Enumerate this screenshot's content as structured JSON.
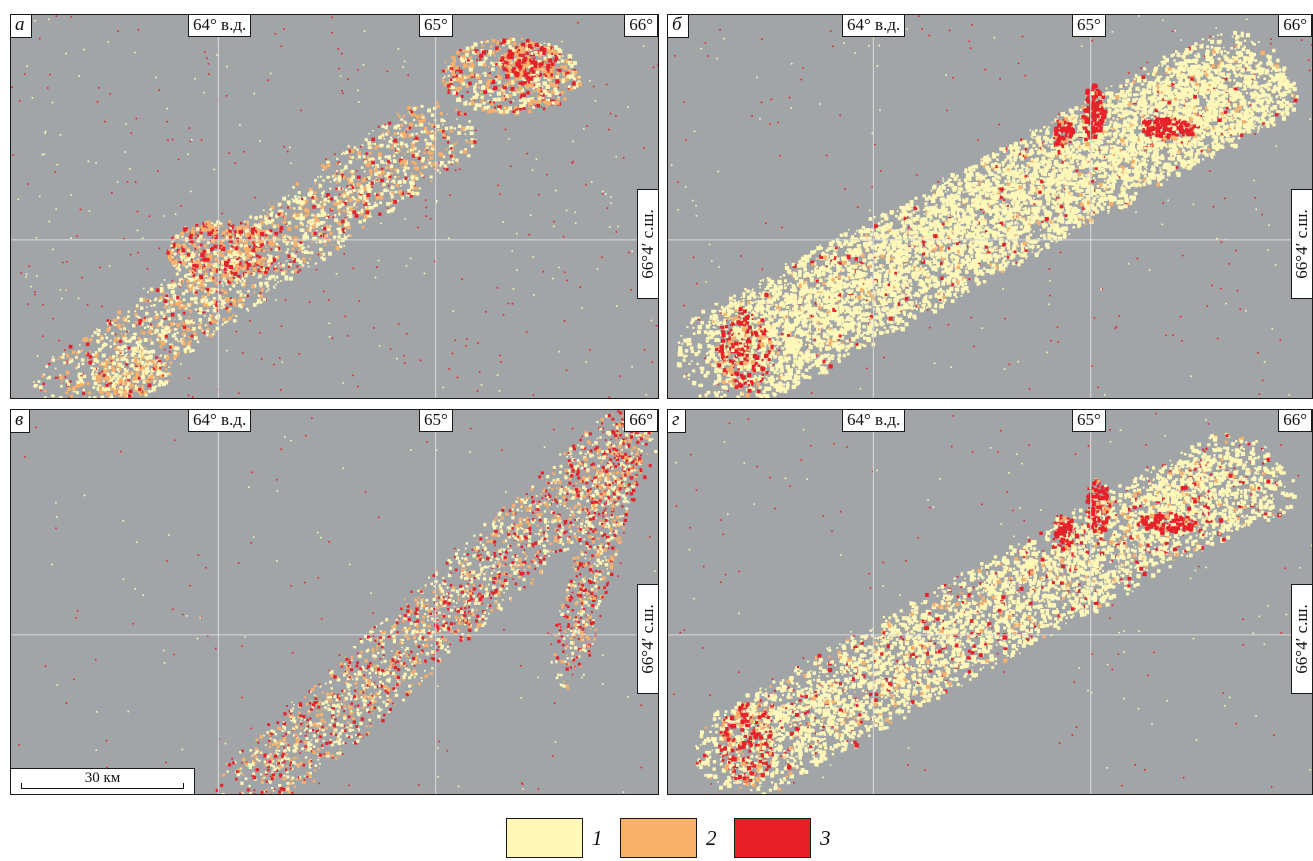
{
  "panels": [
    {
      "id": "a",
      "label": "а",
      "lon": [
        "64° в.д.",
        "65°",
        "66°"
      ],
      "lat": "66°4′ с.ш."
    },
    {
      "id": "b",
      "label": "б",
      "lon": [
        "64° в.д.",
        "65°",
        "66°"
      ],
      "lat": "66°4′ с.ш."
    },
    {
      "id": "v",
      "label": "в",
      "lon": [
        "64° в.д.",
        "65°",
        "66°"
      ],
      "lat": "66°4′ с.ш.",
      "scale": "30 км"
    },
    {
      "id": "g",
      "label": "г",
      "lon": [
        "64° в.д.",
        "65°",
        "66°"
      ],
      "lat": "66°4′ с.ш."
    }
  ],
  "legend": [
    {
      "label": "1",
      "color": "#fff8b8"
    },
    {
      "label": "2",
      "color": "#f9b06a"
    },
    {
      "label": "3",
      "color": "#e8202a"
    }
  ],
  "colors": {
    "background": "#a2a5a7",
    "grid": "#d9dbdc"
  }
}
